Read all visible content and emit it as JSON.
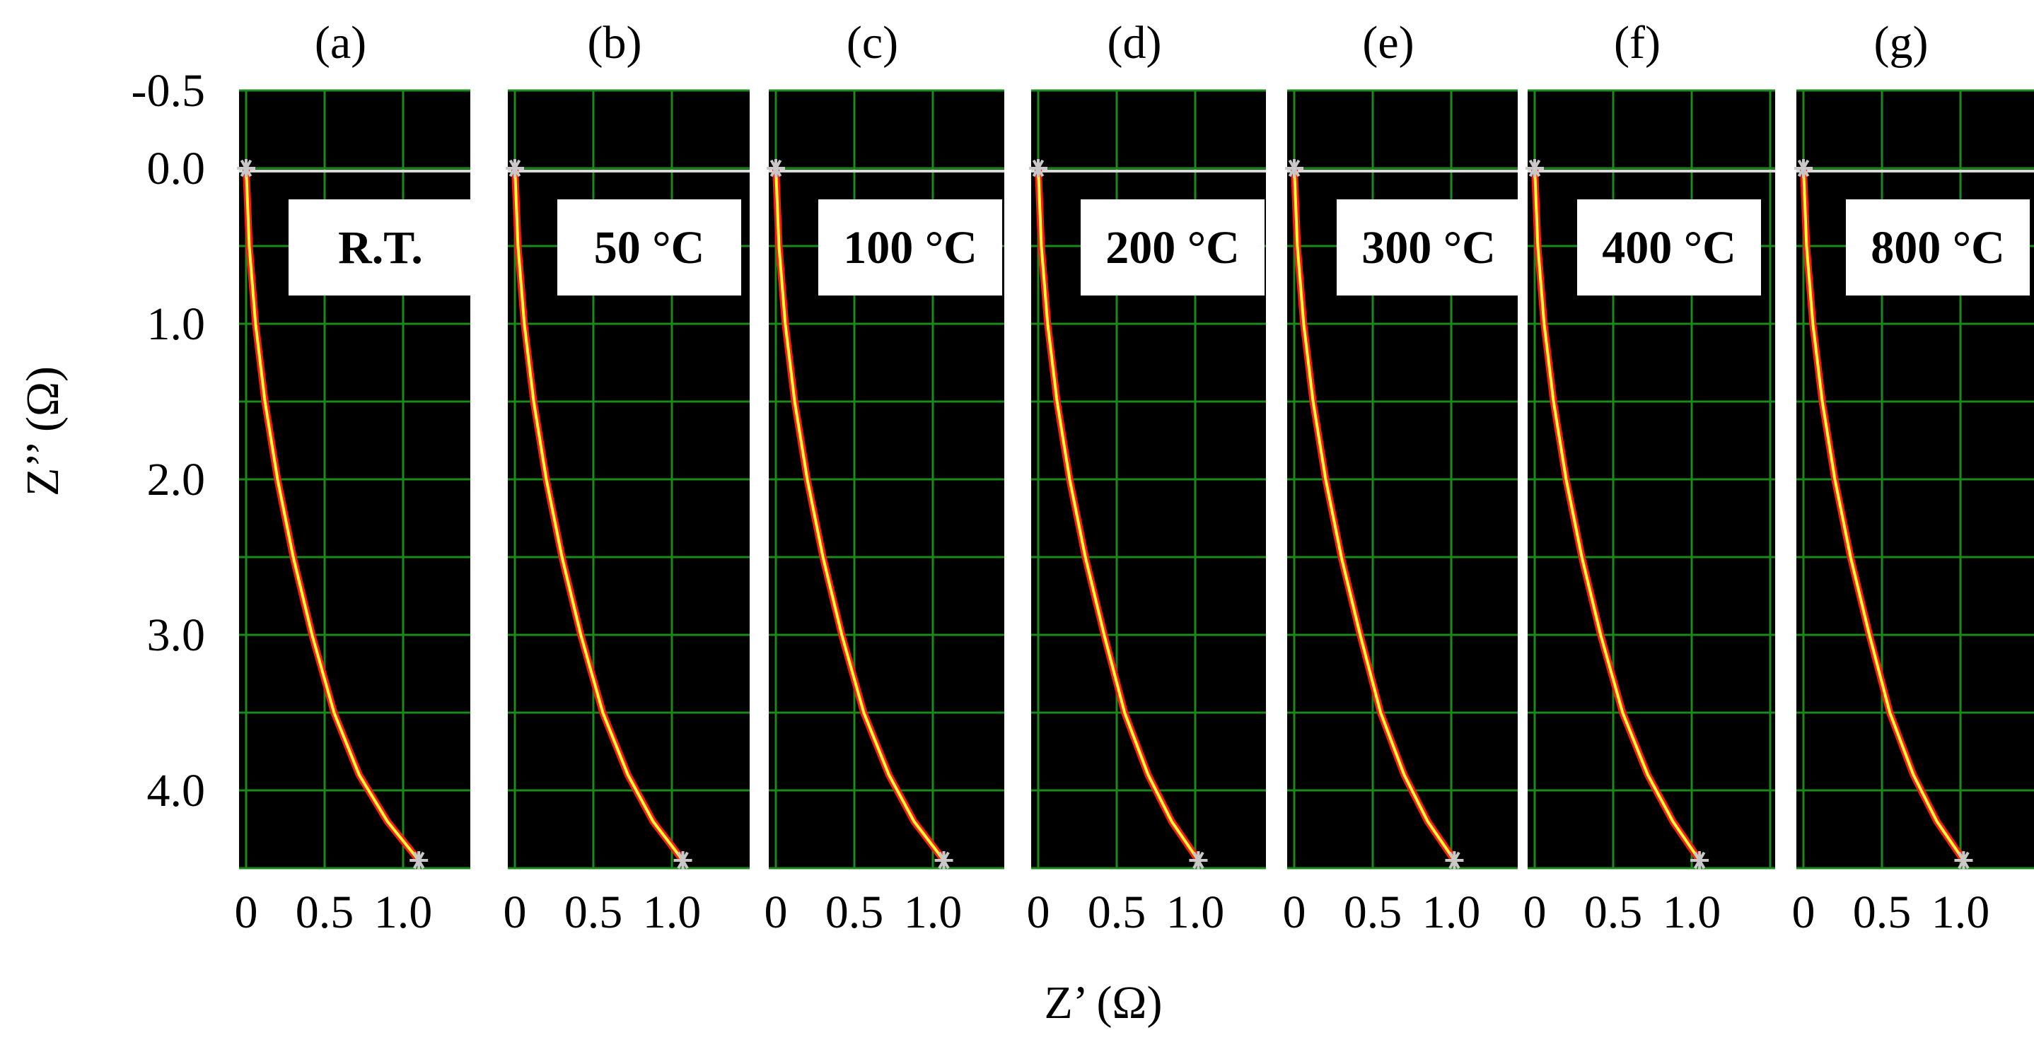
{
  "figure": {
    "x_axis_label": "Z’ (Ω)",
    "y_axis_label": "Z’’ (Ω)",
    "y_tick_labels": [
      "-0.5",
      "0.0",
      "1.0",
      "2.0",
      "3.0",
      "4.0"
    ],
    "x_tick_labels": [
      "0",
      "0.5",
      "1.0"
    ],
    "colors": {
      "plot_background": "#000000",
      "grid": "#1a8a1a",
      "zero_line": "#d9d9d9",
      "curve_outer": "#ff1a1a",
      "curve_inner": "#ffff33",
      "marker": "#c8c8c8",
      "label_box": "#ffffff"
    }
  },
  "chart_data": [
    {
      "type": "line",
      "panel": "(a)",
      "label": "R.T.",
      "x_ticks": [
        0,
        0.5,
        1.0
      ],
      "y_ticks": [
        -0.5,
        0.0,
        1.0,
        2.0,
        3.0,
        4.0
      ],
      "xlim": [
        0,
        1.5
      ],
      "ylim": [
        -0.5,
        4.5
      ],
      "y_inverted": true,
      "grid": true,
      "series": [
        {
          "x": [
            0.0,
            0.02,
            0.06,
            0.12,
            0.2,
            0.3,
            0.42,
            0.56,
            0.72,
            0.9,
            1.1
          ],
          "y": [
            0.0,
            0.5,
            1.0,
            1.5,
            2.0,
            2.5,
            3.0,
            3.5,
            3.9,
            4.2,
            4.45
          ]
        }
      ]
    },
    {
      "type": "line",
      "panel": "(b)",
      "label": "50 °C",
      "x_ticks": [
        0,
        0.5,
        1.0
      ],
      "y_ticks": [
        -0.5,
        0.0,
        1.0,
        2.0,
        3.0,
        4.0
      ],
      "xlim": [
        0,
        1.5
      ],
      "ylim": [
        -0.5,
        4.5
      ],
      "y_inverted": true,
      "grid": true,
      "series": [
        {
          "x": [
            0.0,
            0.02,
            0.06,
            0.12,
            0.2,
            0.3,
            0.42,
            0.56,
            0.72,
            0.88,
            1.07
          ],
          "y": [
            0.0,
            0.5,
            1.0,
            1.5,
            2.0,
            2.5,
            3.0,
            3.5,
            3.9,
            4.2,
            4.45
          ]
        }
      ]
    },
    {
      "type": "line",
      "panel": "(c)",
      "label": "100 °C",
      "x_ticks": [
        0,
        0.5,
        1.0
      ],
      "y_ticks": [
        -0.5,
        0.0,
        1.0,
        2.0,
        3.0,
        4.0
      ],
      "xlim": [
        0,
        1.5
      ],
      "ylim": [
        -0.5,
        4.5
      ],
      "y_inverted": true,
      "grid": true,
      "series": [
        {
          "x": [
            0.0,
            0.02,
            0.06,
            0.12,
            0.2,
            0.3,
            0.42,
            0.56,
            0.72,
            0.88,
            1.07
          ],
          "y": [
            0.0,
            0.5,
            1.0,
            1.5,
            2.0,
            2.5,
            3.0,
            3.5,
            3.9,
            4.2,
            4.45
          ]
        }
      ]
    },
    {
      "type": "line",
      "panel": "(d)",
      "label": "200 °C",
      "x_ticks": [
        0,
        0.5,
        1.0
      ],
      "y_ticks": [
        -0.5,
        0.0,
        1.0,
        2.0,
        3.0,
        4.0
      ],
      "xlim": [
        0,
        1.5
      ],
      "ylim": [
        -0.5,
        4.5
      ],
      "y_inverted": true,
      "grid": true,
      "series": [
        {
          "x": [
            0.0,
            0.02,
            0.06,
            0.12,
            0.2,
            0.3,
            0.42,
            0.55,
            0.7,
            0.85,
            1.02
          ],
          "y": [
            0.0,
            0.5,
            1.0,
            1.5,
            2.0,
            2.5,
            3.0,
            3.5,
            3.9,
            4.2,
            4.45
          ]
        }
      ]
    },
    {
      "type": "line",
      "panel": "(e)",
      "label": "300 °C",
      "x_ticks": [
        0,
        0.5,
        1.0
      ],
      "y_ticks": [
        -0.5,
        0.0,
        1.0,
        2.0,
        3.0,
        4.0
      ],
      "xlim": [
        0,
        1.5
      ],
      "ylim": [
        -0.5,
        4.5
      ],
      "y_inverted": true,
      "grid": true,
      "series": [
        {
          "x": [
            0.0,
            0.02,
            0.06,
            0.12,
            0.2,
            0.3,
            0.42,
            0.55,
            0.7,
            0.85,
            1.02
          ],
          "y": [
            0.0,
            0.5,
            1.0,
            1.5,
            2.0,
            2.5,
            3.0,
            3.5,
            3.9,
            4.2,
            4.45
          ]
        }
      ]
    },
    {
      "type": "line",
      "panel": "(f)",
      "label": "400 °C",
      "x_ticks": [
        0,
        0.5,
        1.0
      ],
      "y_ticks": [
        -0.5,
        0.0,
        1.0,
        2.0,
        3.0,
        4.0
      ],
      "xlim": [
        0,
        1.5
      ],
      "ylim": [
        -0.5,
        4.5
      ],
      "y_inverted": true,
      "grid": true,
      "series": [
        {
          "x": [
            0.0,
            0.02,
            0.06,
            0.12,
            0.2,
            0.3,
            0.42,
            0.56,
            0.72,
            0.88,
            1.05
          ],
          "y": [
            0.0,
            0.5,
            1.0,
            1.5,
            2.0,
            2.5,
            3.0,
            3.5,
            3.9,
            4.2,
            4.45
          ]
        }
      ]
    },
    {
      "type": "line",
      "panel": "(g)",
      "label": "800 °C",
      "x_ticks": [
        0,
        0.5,
        1.0
      ],
      "y_ticks": [
        -0.5,
        0.0,
        1.0,
        2.0,
        3.0,
        4.0
      ],
      "xlim": [
        0,
        1.5
      ],
      "ylim": [
        -0.5,
        4.5
      ],
      "y_inverted": true,
      "grid": true,
      "series": [
        {
          "x": [
            0.0,
            0.02,
            0.06,
            0.12,
            0.2,
            0.3,
            0.42,
            0.55,
            0.7,
            0.85,
            1.02
          ],
          "y": [
            0.0,
            0.5,
            1.0,
            1.5,
            2.0,
            2.5,
            3.0,
            3.5,
            3.9,
            4.2,
            4.45
          ]
        }
      ]
    }
  ]
}
